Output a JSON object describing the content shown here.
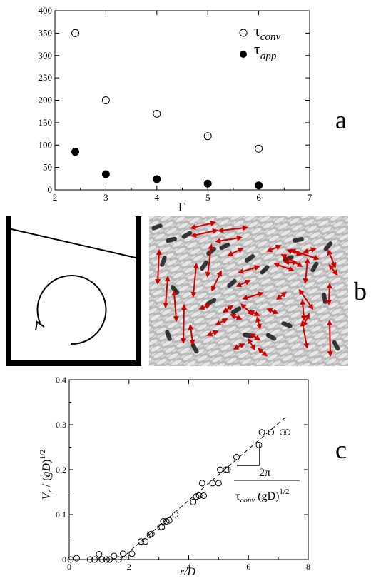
{
  "panel_labels": {
    "a": "a",
    "b": "b",
    "c": "c"
  },
  "chart_data": [
    {
      "type": "scatter",
      "panel": "a",
      "xlabel": "Γ",
      "ylabel": "",
      "xlim": [
        2,
        7
      ],
      "ylim": [
        0,
        400
      ],
      "x_ticks": [
        "2",
        "3",
        "4",
        "5",
        "6",
        "7"
      ],
      "y_ticks": [
        "0",
        "50",
        "100",
        "150",
        "200",
        "250",
        "300",
        "350",
        "400"
      ],
      "legend_placement": "top-right",
      "series": [
        {
          "name": "τ",
          "subscript": "conv",
          "marker": "open-circle",
          "x": [
            2.4,
            3,
            4,
            5,
            6
          ],
          "y": [
            350,
            200,
            170,
            120,
            92
          ]
        },
        {
          "name": "τ",
          "subscript": "app",
          "marker": "filled-circle",
          "x": [
            2.4,
            3,
            4,
            5,
            6
          ],
          "y": [
            85,
            35,
            24,
            14,
            10
          ]
        }
      ]
    },
    {
      "type": "scatter",
      "panel": "c",
      "xlabel": "r/D",
      "ylabel": "V_r / (gD)^1/2",
      "xlim": [
        0,
        8
      ],
      "ylim": [
        0,
        0.4
      ],
      "x_ticks": [
        "0",
        "2",
        "4",
        "6",
        "8"
      ],
      "y_ticks": [
        "0",
        "0.1",
        "0.2",
        "0.3",
        "0.4"
      ],
      "series": [
        {
          "name": "",
          "marker": "open-circle",
          "x": [
            0.05,
            0.25,
            0.7,
            0.85,
            1.0,
            1.1,
            1.25,
            1.35,
            1.5,
            1.65,
            1.8,
            2.1,
            2.4,
            2.55,
            2.7,
            2.75,
            3.05,
            3.1,
            3.15,
            3.25,
            3.35,
            3.55,
            4.15,
            4.25,
            4.35,
            4.45,
            4.5,
            4.8,
            5.0,
            5.05,
            5.25,
            5.3,
            5.6,
            6.35,
            6.45,
            6.75,
            7.15,
            7.3
          ],
          "y": [
            0.0,
            0.003,
            0.0,
            0.0,
            0.012,
            0.0,
            0.0,
            0.0,
            0.008,
            0.0,
            0.013,
            0.013,
            0.04,
            0.04,
            0.055,
            0.057,
            0.072,
            0.072,
            0.085,
            0.085,
            0.087,
            0.1,
            0.128,
            0.14,
            0.142,
            0.17,
            0.142,
            0.17,
            0.17,
            0.2,
            0.2,
            0.2,
            0.228,
            0.255,
            0.283,
            0.283,
            0.283,
            0.283
          ]
        }
      ],
      "fit_line": {
        "x": [
          1.7,
          7.3
        ],
        "y": [
          0.0,
          0.32
        ],
        "style": "dashed"
      },
      "slope_annotation": {
        "numerator": "2π",
        "denominator_symbol": "τ",
        "denominator_sub": "conv",
        "denominator_tail": "(gD)",
        "exponent": "1/2"
      }
    }
  ],
  "arrows": [
    [
      221,
      395,
      223,
      353
    ],
    [
      232,
      428,
      235,
      390
    ],
    [
      247,
      447,
      244,
      410
    ],
    [
      257,
      478,
      258,
      430
    ],
    [
      270,
      480,
      267,
      458
    ],
    [
      271,
      413,
      275,
      372
    ],
    [
      291,
      385,
      296,
      345
    ],
    [
      298,
      405,
      309,
      382
    ],
    [
      270,
      319,
      299,
      312
    ],
    [
      271,
      330,
      302,
      323
    ],
    [
      309,
      323,
      344,
      319
    ],
    [
      305,
      338,
      336,
      333
    ],
    [
      322,
      357,
      338,
      349
    ],
    [
      337,
      381,
      361,
      374
    ],
    [
      334,
      400,
      348,
      394
    ],
    [
      343,
      418,
      366,
      411
    ],
    [
      352,
      437,
      361,
      441
    ],
    [
      326,
      442,
      336,
      446
    ],
    [
      282,
      432,
      292,
      428
    ],
    [
      293,
      469,
      303,
      465
    ],
    [
      305,
      454,
      316,
      448
    ],
    [
      330,
      488,
      340,
      483
    ],
    [
      349,
      477,
      356,
      488
    ],
    [
      353,
      469,
      362,
      475
    ],
    [
      361,
      447,
      364,
      458
    ],
    [
      364,
      490,
      372,
      497
    ],
    [
      377,
      434,
      387,
      438
    ],
    [
      390,
      418,
      399,
      411
    ],
    [
      387,
      370,
      409,
      378
    ],
    [
      377,
      351,
      391,
      345
    ],
    [
      397,
      358,
      421,
      372
    ],
    [
      405,
      351,
      420,
      356
    ],
    [
      401,
      367,
      414,
      368
    ],
    [
      410,
      351,
      444,
      362
    ],
    [
      428,
      353,
      440,
      349
    ],
    [
      431,
      365,
      428,
      394
    ],
    [
      421,
      408,
      437,
      431
    ],
    [
      424,
      423,
      426,
      446
    ],
    [
      424,
      453,
      430,
      485
    ],
    [
      432,
      442,
      426,
      455
    ],
    [
      461,
      353,
      469,
      372
    ],
    [
      463,
      373,
      471,
      383
    ],
    [
      462,
      400,
      461,
      424
    ],
    [
      462,
      452,
      463,
      496
    ],
    [
      340,
      428,
      352,
      439
    ],
    [
      315,
      436,
      324,
      430
    ]
  ],
  "colors": {
    "arrow": "#d10000",
    "photo_bg": "#b9b9b9",
    "axis": "#000000"
  }
}
